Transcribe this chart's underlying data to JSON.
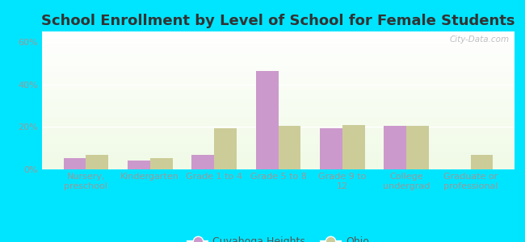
{
  "title": "School Enrollment by Level of School for Female Students",
  "categories": [
    "Nursery,\npreschool",
    "Kindergarten",
    "Grade 1 to 4",
    "Grade 5 to 8",
    "Grade 9 to\n12",
    "College\nundergrad",
    "Graduate or\nprofessional"
  ],
  "cuyahoga_values": [
    5.5,
    4.0,
    7.0,
    46.5,
    19.5,
    20.5,
    0.0
  ],
  "ohio_values": [
    7.0,
    5.5,
    19.5,
    20.5,
    21.0,
    20.5,
    7.0
  ],
  "cuyahoga_color": "#cc99cc",
  "ohio_color": "#cccc99",
  "background_outer": "#00e5ff",
  "yticks": [
    0,
    20,
    40,
    60
  ],
  "ylim": [
    0,
    65
  ],
  "watermark": "City-Data.com",
  "bar_width": 0.35,
  "title_fontsize": 13,
  "tick_fontsize": 8,
  "legend_fontsize": 9
}
